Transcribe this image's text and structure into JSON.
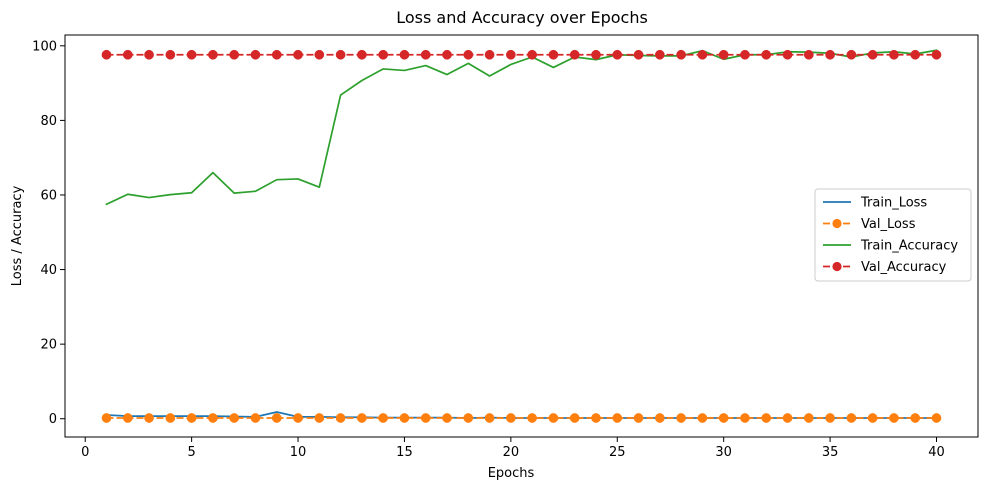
{
  "chart_data": {
    "type": "line",
    "title": "Loss and Accuracy over Epochs",
    "xlabel": "Epochs",
    "ylabel": "Loss / Accuracy",
    "xlim": [
      -0.95,
      41.95
    ],
    "ylim": [
      -4.9,
      102.9
    ],
    "xticks": [
      0,
      5,
      10,
      15,
      20,
      25,
      30,
      35,
      40
    ],
    "yticks": [
      0,
      20,
      40,
      60,
      80,
      100
    ],
    "grid": false,
    "legend_position": "center-right",
    "x": [
      1,
      2,
      3,
      4,
      5,
      6,
      7,
      8,
      9,
      10,
      11,
      12,
      13,
      14,
      15,
      16,
      17,
      18,
      19,
      20,
      21,
      22,
      23,
      24,
      25,
      26,
      27,
      28,
      29,
      30,
      31,
      32,
      33,
      34,
      35,
      36,
      37,
      38,
      39,
      40
    ],
    "series": [
      {
        "name": "Train_Loss",
        "color": "#1f77b4",
        "linestyle": "solid",
        "marker": "none",
        "values": [
          1.0,
          0.7,
          0.7,
          0.7,
          0.7,
          0.7,
          0.6,
          0.5,
          1.8,
          0.5,
          0.5,
          0.4,
          0.4,
          0.3,
          0.3,
          0.3,
          0.3,
          0.2,
          0.3,
          0.2,
          0.2,
          0.2,
          0.2,
          0.2,
          0.2,
          0.2,
          0.2,
          0.2,
          0.2,
          0.2,
          0.2,
          0.2,
          0.2,
          0.2,
          0.2,
          0.2,
          0.2,
          0.2,
          0.2,
          0.2
        ]
      },
      {
        "name": "Val_Loss",
        "color": "#ff7f0e",
        "linestyle": "dashed",
        "marker": "circle",
        "values": [
          0.2,
          0.2,
          0.2,
          0.2,
          0.2,
          0.2,
          0.2,
          0.2,
          0.2,
          0.2,
          0.2,
          0.2,
          0.2,
          0.2,
          0.2,
          0.2,
          0.2,
          0.2,
          0.2,
          0.2,
          0.2,
          0.2,
          0.2,
          0.2,
          0.2,
          0.2,
          0.2,
          0.2,
          0.2,
          0.2,
          0.2,
          0.2,
          0.2,
          0.2,
          0.2,
          0.2,
          0.2,
          0.2,
          0.2,
          0.2
        ]
      },
      {
        "name": "Train_Accuracy",
        "color": "#2ca02c",
        "linestyle": "solid",
        "marker": "none",
        "values": [
          57.5,
          60.2,
          59.3,
          60.1,
          60.6,
          66.0,
          60.5,
          61.0,
          64.1,
          64.3,
          62.1,
          86.8,
          90.7,
          93.8,
          93.4,
          94.7,
          92.3,
          95.3,
          91.9,
          95.0,
          97.0,
          94.2,
          97.0,
          96.3,
          97.6,
          97.4,
          97.3,
          97.3,
          98.7,
          96.4,
          97.6,
          97.6,
          98.4,
          98.3,
          98.0,
          97.0,
          98.1,
          98.4,
          97.8,
          98.8
        ]
      },
      {
        "name": "Val_Accuracy",
        "color": "#d62728",
        "linestyle": "dashed",
        "marker": "circle",
        "values": [
          97.6,
          97.6,
          97.6,
          97.6,
          97.6,
          97.6,
          97.6,
          97.6,
          97.6,
          97.6,
          97.6,
          97.6,
          97.6,
          97.6,
          97.6,
          97.6,
          97.6,
          97.6,
          97.6,
          97.6,
          97.6,
          97.6,
          97.6,
          97.6,
          97.6,
          97.6,
          97.6,
          97.6,
          97.6,
          97.6,
          97.6,
          97.6,
          97.6,
          97.6,
          97.6,
          97.6,
          97.6,
          97.6,
          97.6,
          97.6
        ]
      }
    ]
  }
}
